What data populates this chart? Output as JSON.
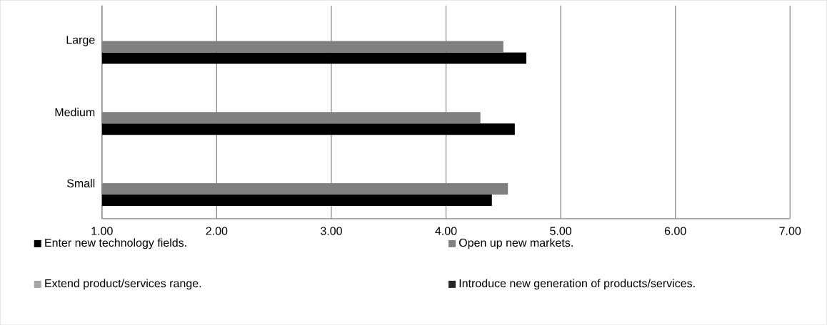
{
  "chart_data": {
    "type": "bar",
    "orientation": "horizontal",
    "categories": [
      "Large",
      "Medium",
      "Small"
    ],
    "series": [
      {
        "name": "Enter new technology fields.",
        "color": "#000000",
        "values": [
          4.7,
          4.6,
          4.4
        ]
      },
      {
        "name": "Open up new markets.",
        "color": "#808080",
        "values": [
          4.5,
          4.3,
          4.54
        ]
      },
      {
        "name": "Extend product/services range.",
        "color": "#a6a6a6",
        "values": [
          null,
          null,
          null
        ]
      },
      {
        "name": "Introduce new generation of products/services.",
        "color": "#262626",
        "values": [
          null,
          null,
          null
        ]
      }
    ],
    "xlim": [
      1,
      7
    ],
    "xticks": [
      {
        "value": 1,
        "label": "1.00"
      },
      {
        "value": 2,
        "label": "2.00"
      },
      {
        "value": 3,
        "label": "3.00"
      },
      {
        "value": 4,
        "label": "4.00"
      },
      {
        "value": 5,
        "label": "5.00"
      },
      {
        "value": 6,
        "label": "6.00"
      },
      {
        "value": 7,
        "label": "7.00"
      }
    ],
    "grid": "x",
    "legend": "bottom"
  }
}
